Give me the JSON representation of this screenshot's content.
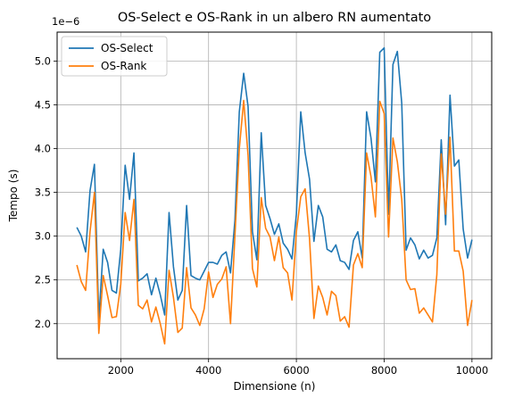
{
  "chart_data": {
    "type": "line",
    "title": "OS-Select e OS-Rank in un albero RN aumentato",
    "xlabel": "Dimensione (n)",
    "ylabel": "Tempo (s)",
    "y_offset_text": "1e−6",
    "y_multiplier": 1e-06,
    "xlim": [
      550,
      10450
    ],
    "ylim": [
      1.6,
      5.33
    ],
    "xticks": [
      2000,
      4000,
      6000,
      8000,
      10000
    ],
    "xtick_labels": [
      "2000",
      "4000",
      "6000",
      "8000",
      "10000"
    ],
    "yticks": [
      2.0,
      2.5,
      3.0,
      3.5,
      4.0,
      4.5,
      5.0
    ],
    "ytick_labels": [
      "2.0",
      "2.5",
      "3.0",
      "3.5",
      "4.0",
      "4.5",
      "5.0"
    ],
    "grid": true,
    "legend_position": "top-left",
    "x": [
      1000,
      1100,
      1200,
      1300,
      1400,
      1500,
      1600,
      1700,
      1800,
      1900,
      2000,
      2100,
      2200,
      2300,
      2400,
      2500,
      2600,
      2700,
      2800,
      2900,
      3000,
      3100,
      3200,
      3300,
      3400,
      3500,
      3600,
      3700,
      3800,
      3900,
      4000,
      4100,
      4200,
      4300,
      4400,
      4500,
      4600,
      4700,
      4800,
      4900,
      5000,
      5100,
      5200,
      5300,
      5400,
      5500,
      5600,
      5700,
      5800,
      5900,
      6000,
      6100,
      6200,
      6300,
      6400,
      6500,
      6600,
      6700,
      6800,
      6900,
      7000,
      7100,
      7200,
      7300,
      7400,
      7500,
      7600,
      7700,
      7800,
      7900,
      8000,
      8100,
      8200,
      8300,
      8400,
      8500,
      8600,
      8700,
      8800,
      8900,
      9000,
      9100,
      9200,
      9300,
      9400,
      9500,
      9600,
      9700,
      9800,
      9900,
      10000
    ],
    "series": [
      {
        "name": "OS-Select",
        "color": "#1f77b4",
        "values": [
          3.1,
          3.0,
          2.82,
          3.52,
          3.82,
          2.05,
          2.85,
          2.7,
          2.38,
          2.35,
          2.85,
          3.81,
          3.42,
          3.95,
          2.49,
          2.52,
          2.57,
          2.33,
          2.52,
          2.33,
          2.1,
          3.27,
          2.65,
          2.27,
          2.38,
          3.35,
          2.55,
          2.52,
          2.5,
          2.6,
          2.7,
          2.7,
          2.68,
          2.78,
          2.82,
          2.58,
          3.18,
          4.42,
          4.86,
          4.48,
          3.05,
          2.73,
          4.18,
          3.35,
          3.2,
          3.02,
          3.14,
          2.92,
          2.85,
          2.74,
          3.25,
          4.42,
          3.95,
          3.65,
          2.94,
          3.35,
          3.22,
          2.85,
          2.82,
          2.9,
          2.72,
          2.7,
          2.62,
          2.95,
          3.05,
          2.75,
          4.42,
          4.12,
          3.62,
          5.1,
          5.15,
          3.25,
          4.96,
          5.11,
          4.52,
          2.84,
          2.98,
          2.9,
          2.74,
          2.84,
          2.75,
          2.78,
          2.98,
          4.1,
          3.13,
          4.61,
          3.8,
          3.87,
          3.08,
          2.75,
          2.96
        ]
      },
      {
        "name": "OS-Rank",
        "color": "#ff7f0e",
        "values": [
          2.67,
          2.48,
          2.38,
          3.05,
          3.5,
          1.89,
          2.55,
          2.32,
          2.07,
          2.08,
          2.45,
          3.27,
          2.95,
          3.42,
          2.21,
          2.17,
          2.27,
          2.02,
          2.19,
          2.0,
          1.77,
          2.61,
          2.3,
          1.9,
          1.95,
          2.64,
          2.18,
          2.1,
          1.98,
          2.17,
          2.59,
          2.3,
          2.45,
          2.51,
          2.65,
          2.0,
          3.0,
          4.0,
          4.55,
          3.92,
          2.63,
          2.42,
          3.44,
          3.09,
          2.99,
          2.72,
          2.99,
          2.64,
          2.58,
          2.27,
          3.05,
          3.45,
          3.54,
          2.97,
          2.06,
          2.43,
          2.3,
          2.1,
          2.37,
          2.32,
          2.03,
          2.08,
          1.96,
          2.67,
          2.8,
          2.64,
          3.95,
          3.68,
          3.22,
          4.54,
          4.4,
          2.99,
          4.12,
          3.85,
          3.42,
          2.5,
          2.39,
          2.4,
          2.12,
          2.18,
          2.1,
          2.02,
          2.56,
          3.94,
          3.25,
          4.13,
          2.83,
          2.83,
          2.6,
          1.98,
          2.27
        ]
      }
    ]
  }
}
